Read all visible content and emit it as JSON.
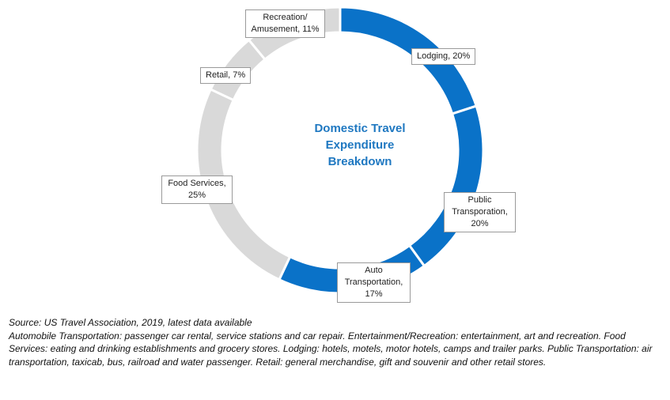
{
  "chart_data": {
    "type": "pie",
    "variant": "donut",
    "center_title": [
      "Domestic Travel",
      "Expenditure",
      "Breakdown"
    ],
    "slices": [
      {
        "label_lines": [
          "Lodging, 20%"
        ],
        "category": "Lodging",
        "value": 20,
        "color": "#0a72c8"
      },
      {
        "label_lines": [
          "Public",
          "Transporation,",
          "20%"
        ],
        "category": "Public Transporation",
        "value": 20,
        "color": "#0a72c8"
      },
      {
        "label_lines": [
          "Auto",
          "Transportation,",
          "17%"
        ],
        "category": "Auto Transportation",
        "value": 17,
        "color": "#0a72c8"
      },
      {
        "label_lines": [
          "Food Services,",
          "25%"
        ],
        "category": "Food Services",
        "value": 25,
        "color": "#d9d9d9"
      },
      {
        "label_lines": [
          "Retail, 7%"
        ],
        "category": "Retail",
        "value": 7,
        "color": "#d9d9d9"
      },
      {
        "label_lines": [
          "Recreation/",
          "Amusement,  11%"
        ],
        "category": "Recreation/ Amusement",
        "value": 11,
        "color": "#d9d9d9"
      }
    ],
    "legend": "none (data labels on slices)"
  },
  "footnote": {
    "source": "Source: US Travel Association, 2019,  latest data available",
    "definitions": "Automobile Transportation: passenger car rental, service stations and car repair. Entertainment/Recreation: entertainment, art and recreation. Food Services: eating and drinking establishments and grocery stores. Lodging: hotels, motels, motor hotels, camps and trailer parks. Public Transportation: air transportation, taxicab, bus, railroad and water passenger. Retail: general merchandise, gift and souvenir and other retail stores."
  }
}
